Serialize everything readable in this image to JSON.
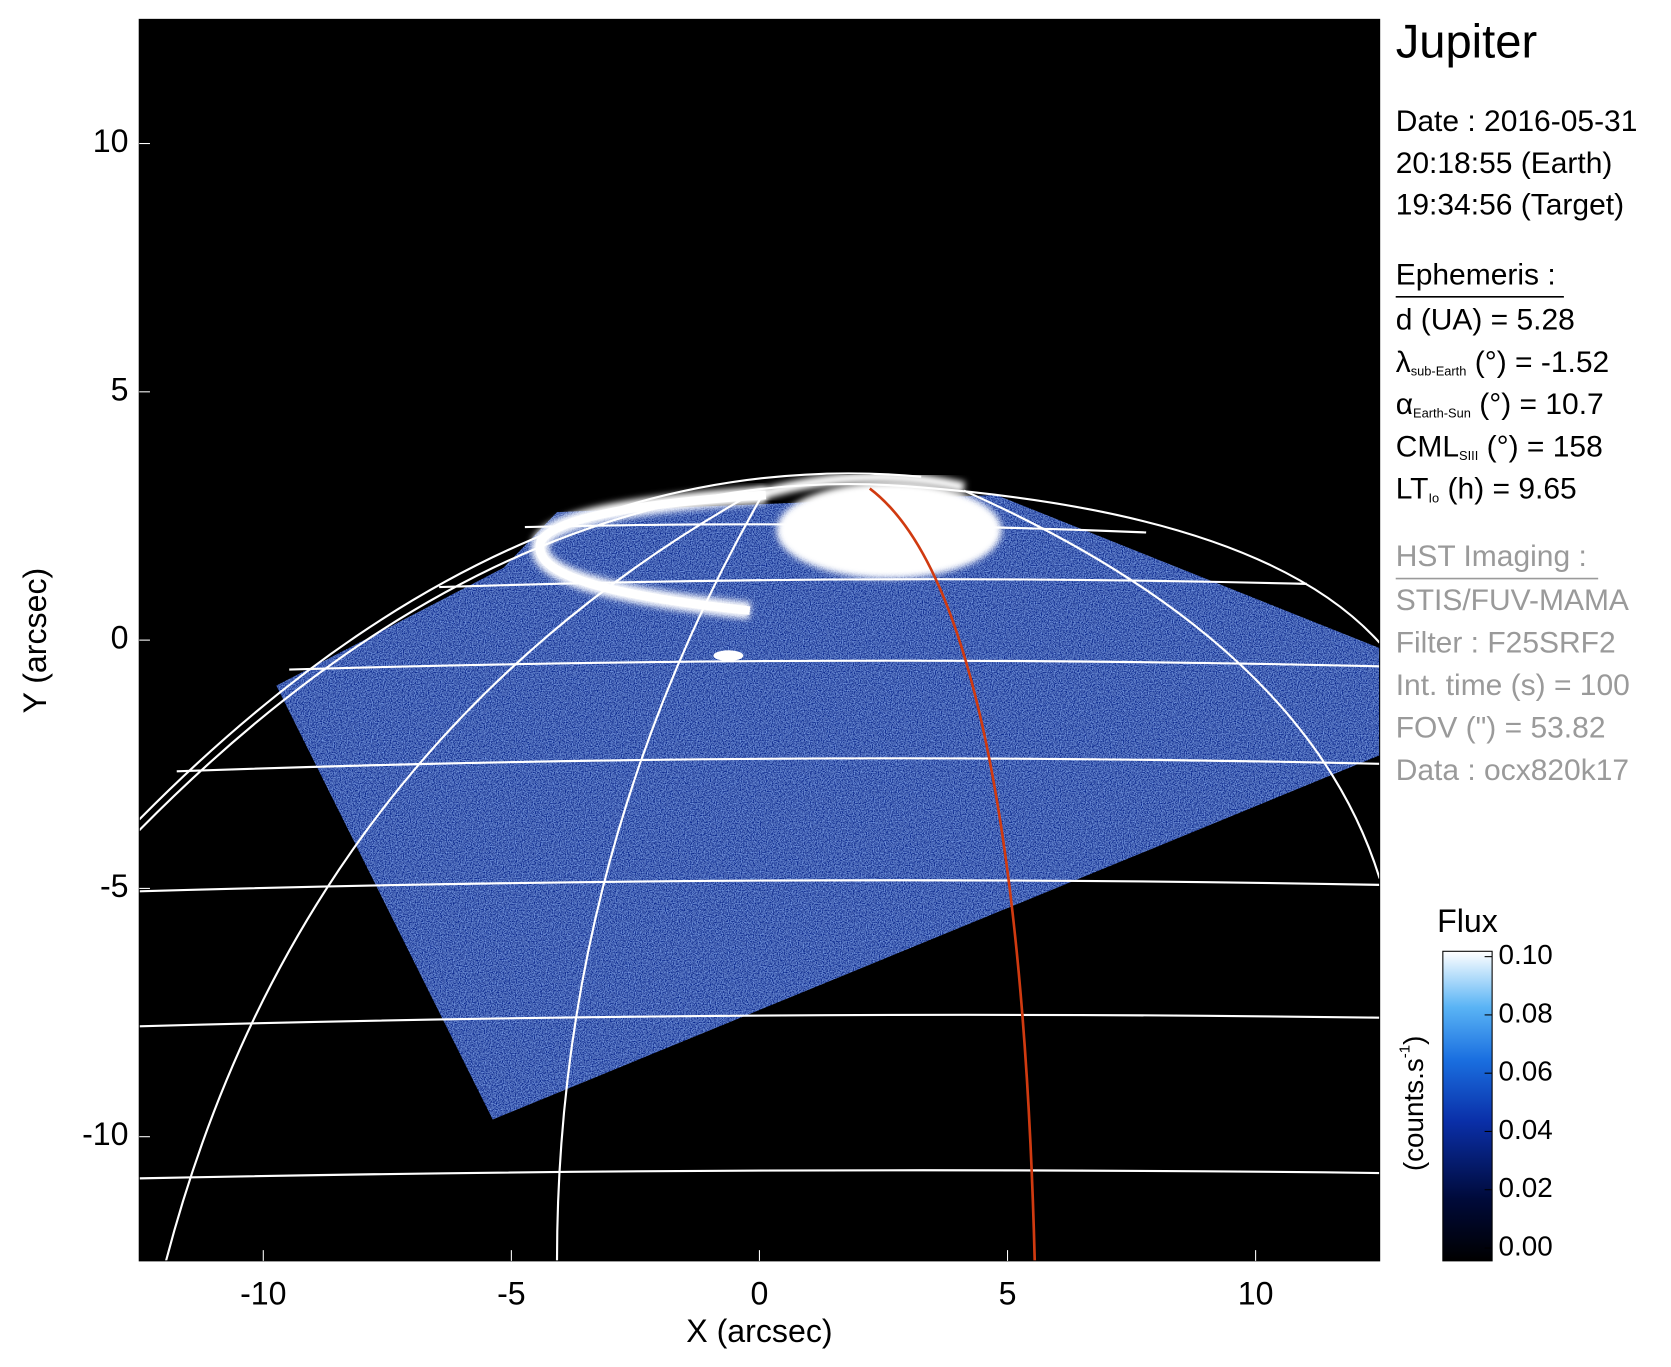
{
  "chart_data": {
    "type": "image",
    "xlabel": "X (arcsec)",
    "ylabel": "Y (arcsec)",
    "xlim": [
      -12.5,
      12.5
    ],
    "ylim": [
      -12.5,
      12.5
    ],
    "xticks": [
      -10,
      -5,
      0,
      5,
      10
    ],
    "yticks": [
      -10,
      -5,
      0,
      5,
      10
    ],
    "colorbar": {
      "title": "Flux",
      "label": "(counts.s",
      "label_sup": "-1",
      "label_end": ")",
      "lim": [
        0,
        0.1
      ],
      "ticks": [
        {
          "value": 0,
          "label": "0.00"
        },
        {
          "value": 0.02,
          "label": "0.02"
        },
        {
          "value": 0.04,
          "label": "0.04"
        },
        {
          "value": 0.06,
          "label": "0.06"
        },
        {
          "value": 0.08,
          "label": "0.08"
        },
        {
          "value": 0.1,
          "label": "0.10"
        }
      ]
    }
  },
  "info": {
    "target": "Jupiter",
    "date": [
      "Date : 2016-05-31",
      "20:18:55 (Earth)",
      "19:34:56 (Target)"
    ],
    "ephemeris": {
      "title": "Ephemeris :",
      "rows": [
        {
          "main": "d (UA)    = 5.28"
        },
        {
          "main": "λ",
          "sub": "sub-Earth",
          "rest": " (°) = -1.52"
        },
        {
          "main": "α",
          "sub": "Earth-Sun",
          "rest": " (°) = 10.7"
        },
        {
          "main": "CML",
          "sub": "SIII",
          "rest": " (°) = 158"
        },
        {
          "main": "LT",
          "sub": "Io",
          "rest": " (h) = 9.65"
        }
      ]
    },
    "imaging": {
      "title": "HST Imaging :",
      "rows": [
        "STIS/FUV-MAMA",
        "Filter : F25SRF2",
        "Int. time (s) = 100",
        "FOV (\") = 53.82",
        "Data : ocx820k17"
      ]
    }
  }
}
